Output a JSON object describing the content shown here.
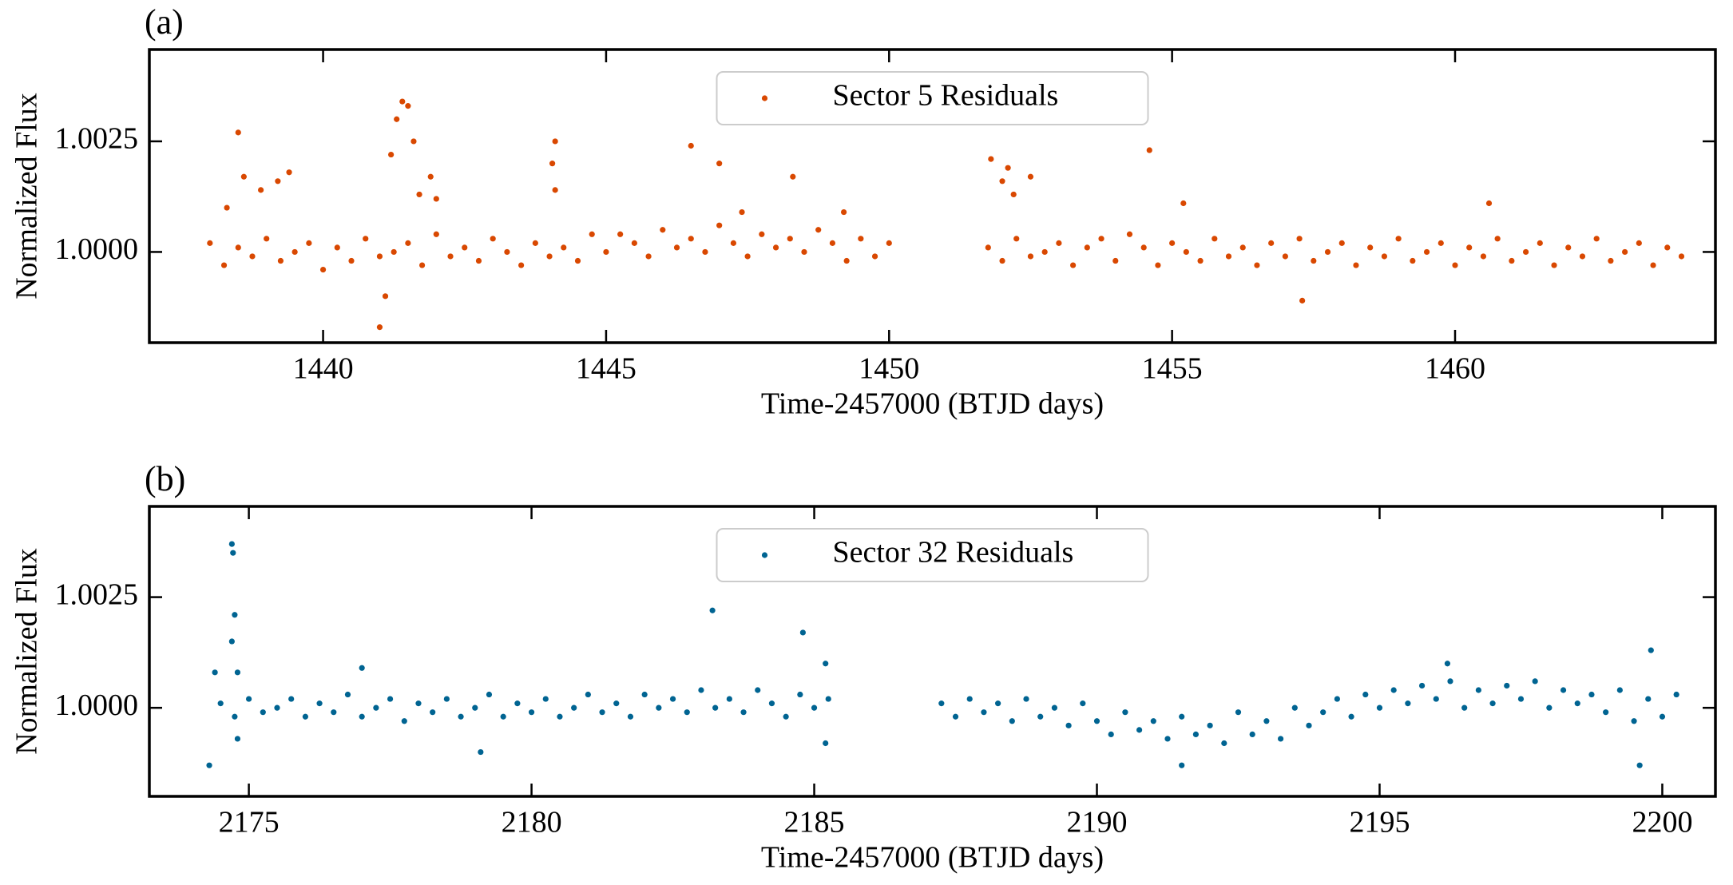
{
  "chart_data": [
    {
      "type": "scatter",
      "panel_label": "(a)",
      "xlabel": "Time-2457000 (BTJD days)",
      "ylabel": "Normalized Flux",
      "legend": "upper center",
      "xlim": [
        1436.93,
        1464.6
      ],
      "ylim": [
        0.99795,
        1.004575
      ],
      "xticks": [
        1440,
        1445,
        1450,
        1455,
        1460
      ],
      "yticks": [
        {
          "value": 1,
          "label": "1.0000"
        },
        1.0025
      ],
      "series": [
        {
          "name": "Sector 5 Residuals",
          "color": "#d94801",
          "x": [
            1438.0,
            1438.25,
            1438.5,
            1438.75,
            1439.0,
            1439.25,
            1439.5,
            1439.75,
            1440.0,
            1440.25,
            1440.5,
            1440.75,
            1441.0,
            1441.25,
            1441.5,
            1441.75,
            1442.0,
            1442.25,
            1442.5,
            1442.75,
            1443.0,
            1443.25,
            1443.5,
            1443.75,
            1444.0,
            1444.25,
            1444.5,
            1444.75,
            1445.0,
            1445.25,
            1445.5,
            1445.75,
            1446.0,
            1446.25,
            1446.5,
            1446.75,
            1447.0,
            1447.25,
            1447.5,
            1447.75,
            1448.0,
            1448.25,
            1448.5,
            1448.75,
            1449.0,
            1449.25,
            1449.5,
            1449.75,
            1450.0,
            1451.75,
            1452.0,
            1452.25,
            1452.5,
            1452.75,
            1453.0,
            1453.25,
            1453.5,
            1453.75,
            1454.0,
            1454.25,
            1454.5,
            1454.75,
            1455.0,
            1455.25,
            1455.5,
            1455.75,
            1456.0,
            1456.25,
            1456.5,
            1456.75,
            1457.0,
            1457.25,
            1457.5,
            1457.75,
            1458.0,
            1458.25,
            1458.5,
            1458.75,
            1459.0,
            1459.25,
            1459.5,
            1459.75,
            1460.0,
            1460.25,
            1460.5,
            1460.75,
            1461.0,
            1461.25,
            1461.5,
            1461.75,
            1462.0,
            1462.25,
            1462.5,
            1462.75,
            1463.0,
            1463.25,
            1463.5,
            1463.75,
            1464.0,
            1438.3,
            1438.5,
            1438.6,
            1438.9,
            1439.2,
            1439.4,
            1441.2,
            1441.3,
            1441.4,
            1441.5,
            1441.6,
            1441.7,
            1441.9,
            1442.0,
            1441.1,
            1441.0,
            1444.1,
            1444.05,
            1444.1,
            1446.5,
            1447.0,
            1447.4,
            1448.3,
            1449.2,
            1451.8,
            1452.0,
            1452.1,
            1452.2,
            1452.5,
            1454.6,
            1455.2,
            1457.3,
            1460.6
          ],
          "values": [
            1.0002,
            0.9997,
            1.0001,
            0.9999,
            1.0003,
            0.9998,
            1.0,
            1.0002,
            0.9996,
            1.0001,
            0.9998,
            1.0003,
            0.9999,
            1.0,
            1.0002,
            0.9997,
            1.0004,
            0.9999,
            1.0001,
            0.9998,
            1.0003,
            1.0,
            0.9997,
            1.0002,
            0.9999,
            1.0001,
            0.9998,
            1.0004,
            1.0,
            1.0004,
            1.0002,
            0.9999,
            1.0005,
            1.0001,
            1.0003,
            1.0,
            1.0006,
            1.0002,
            0.9999,
            1.0004,
            1.0001,
            1.0003,
            1.0,
            1.0005,
            1.0002,
            0.9998,
            1.0003,
            0.9999,
            1.0002,
            1.0001,
            0.9998,
            1.0003,
            0.9999,
            1.0,
            1.0002,
            0.9997,
            1.0001,
            1.0003,
            0.9998,
            1.0004,
            1.0001,
            0.9997,
            1.0002,
            1.0,
            0.9998,
            1.0003,
            0.9999,
            1.0001,
            0.9997,
            1.0002,
            0.9999,
            1.0003,
            0.9998,
            1.0,
            1.0002,
            0.9997,
            1.0001,
            0.9999,
            1.0003,
            0.9998,
            1.0,
            1.0002,
            0.9997,
            1.0001,
            0.9999,
            1.0003,
            0.9998,
            1.0,
            1.0002,
            0.9997,
            1.0001,
            0.9999,
            1.0003,
            0.9998,
            1.0,
            1.0002,
            0.9997,
            1.0001,
            0.9999,
            1.001,
            1.0027,
            1.0017,
            1.0014,
            1.0016,
            1.0018,
            1.0022,
            1.003,
            1.0034,
            1.0033,
            1.0025,
            1.0013,
            1.0017,
            1.0012,
            0.999,
            0.9983,
            1.0025,
            1.002,
            1.0014,
            1.0024,
            1.002,
            1.0009,
            1.0017,
            1.0009,
            1.0021,
            1.0016,
            1.0019,
            1.0013,
            1.0017,
            1.0023,
            1.0011,
            0.9989,
            1.0011
          ]
        }
      ]
    },
    {
      "type": "scatter",
      "panel_label": "(b)",
      "xlabel": "Time-2457000 (BTJD days)",
      "ylabel": "Normalized Flux",
      "legend": "upper center",
      "xlim": [
        2173.24,
        2200.94
      ],
      "ylim": [
        0.998,
        1.00455
      ],
      "xticks": [
        2175,
        2180,
        2185,
        2190,
        2195,
        2200
      ],
      "yticks": [
        {
          "value": 1,
          "label": "1.0000"
        },
        1.0025
      ],
      "series": [
        {
          "name": "Sector 32 Residuals",
          "color": "#006492",
          "x": [
            2174.5,
            2174.75,
            2175.0,
            2175.25,
            2175.5,
            2175.75,
            2176.0,
            2176.25,
            2176.5,
            2176.75,
            2177.0,
            2177.25,
            2177.5,
            2177.75,
            2178.0,
            2178.25,
            2178.5,
            2178.75,
            2179.0,
            2179.25,
            2179.5,
            2179.75,
            2180.0,
            2180.25,
            2180.5,
            2180.75,
            2181.0,
            2181.25,
            2181.5,
            2181.75,
            2182.0,
            2182.25,
            2182.5,
            2182.75,
            2183.0,
            2183.25,
            2183.5,
            2183.75,
            2184.0,
            2184.25,
            2184.5,
            2184.75,
            2185.0,
            2185.25,
            2187.25,
            2187.5,
            2187.75,
            2188.0,
            2188.25,
            2188.5,
            2188.75,
            2189.0,
            2189.25,
            2189.5,
            2189.75,
            2190.0,
            2190.25,
            2190.5,
            2190.75,
            2191.0,
            2191.25,
            2191.5,
            2191.75,
            2192.0,
            2192.25,
            2192.5,
            2192.75,
            2193.0,
            2193.25,
            2193.5,
            2193.75,
            2194.0,
            2194.25,
            2194.5,
            2194.75,
            2195.0,
            2195.25,
            2195.5,
            2195.75,
            2196.0,
            2196.25,
            2196.5,
            2196.75,
            2197.0,
            2197.25,
            2197.5,
            2197.75,
            2198.0,
            2198.25,
            2198.5,
            2198.75,
            2199.0,
            2199.25,
            2199.5,
            2199.75,
            2200.0,
            2200.25,
            2174.3,
            2174.4,
            2174.7,
            2174.72,
            2174.75,
            2174.7,
            2174.8,
            2174.8,
            2177.0,
            2179.1,
            2183.2,
            2184.8,
            2185.2,
            2191.5,
            2199.6,
            2199.8,
            2196.2,
            2185.2
          ],
          "values": [
            1.0001,
            0.9998,
            1.0002,
            0.9999,
            1.0,
            1.0002,
            0.9998,
            1.0001,
            0.9999,
            1.0003,
            0.9998,
            1.0,
            1.0002,
            0.9997,
            1.0001,
            0.9999,
            1.0002,
            0.9998,
            1.0,
            1.0003,
            0.9998,
            1.0001,
            0.9999,
            1.0002,
            0.9998,
            1.0,
            1.0003,
            0.9999,
            1.0001,
            0.9998,
            1.0003,
            1.0,
            1.0002,
            0.9999,
            1.0004,
            1.0,
            1.0002,
            0.9999,
            1.0004,
            1.0001,
            0.9998,
            1.0003,
            1.0,
            1.0002,
            1.0001,
            0.9998,
            1.0002,
            0.9999,
            1.0001,
            0.9997,
            1.0002,
            0.9998,
            1.0,
            0.9996,
            1.0001,
            0.9997,
            0.9994,
            0.9999,
            0.9995,
            0.9997,
            0.9993,
            0.9998,
            0.9994,
            0.9996,
            0.9992,
            0.9999,
            0.9994,
            0.9997,
            0.9993,
            1.0,
            0.9996,
            0.9999,
            1.0002,
            0.9998,
            1.0003,
            1.0,
            1.0004,
            1.0001,
            1.0005,
            1.0002,
            1.0006,
            1.0,
            1.0004,
            1.0001,
            1.0005,
            1.0002,
            1.0006,
            1.0,
            1.0004,
            1.0001,
            1.0003,
            0.9999,
            1.0004,
            0.9997,
            1.0002,
            0.9998,
            1.0003,
            0.9987,
            1.0008,
            1.0037,
            1.0035,
            1.0021,
            1.0015,
            1.0008,
            0.9993,
            1.0009,
            0.999,
            1.0022,
            1.0017,
            0.9992,
            0.9987,
            0.9987,
            1.0013,
            1.001,
            1.001
          ]
        }
      ]
    }
  ]
}
